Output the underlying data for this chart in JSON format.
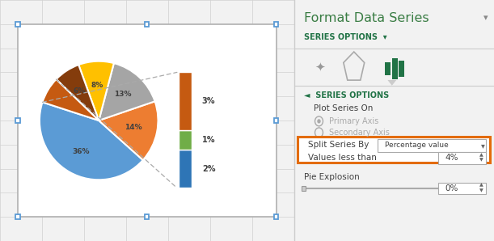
{
  "bg_color": "#f2f2f2",
  "grid_color": "#d0d0d0",
  "chart_border_color": "#7f7f7f",
  "handle_color": "#5b9bd5",
  "pie_main_slices": [
    36,
    14,
    13,
    8,
    6,
    6
  ],
  "pie_main_colors": [
    "#5b9bd5",
    "#ed7d31",
    "#a5a5a5",
    "#ffc000",
    "#843c0c",
    "#c55a11"
  ],
  "pie_labels": [
    "36%",
    "14%",
    "13%",
    "8%",
    "6%"
  ],
  "pie_startangle": -10,
  "bar_slices": [
    2,
    1,
    3
  ],
  "bar_colors": [
    "#2e75b6",
    "#70ad47",
    "#c55a11"
  ],
  "bar_labels": [
    "2%",
    "1%",
    "3%"
  ],
  "panel_bg": "#ffffff",
  "panel_title": "Format Data Series",
  "panel_title_color": "#3a7d44",
  "panel_title_size": 13,
  "series_options_label": "SERIES OPTIONS",
  "series_options_color": "#217346",
  "plot_series_on": "Plot Series On",
  "primary_axis": "Primary Axis",
  "secondary_axis": "Secondary Axis",
  "split_series_by": "Split Series By",
  "split_value": "Percentage value",
  "values_less_than": "Values less than",
  "values_less_than_val": "4%",
  "pie_explosion_label": "Pie Explosion",
  "pie_explosion_val": "0%",
  "text_color": "#404040",
  "muted_color": "#aaaaaa",
  "orange_border": "#e36c09",
  "divider_color": "#cccccc",
  "connector_color": "#aaaaaa"
}
